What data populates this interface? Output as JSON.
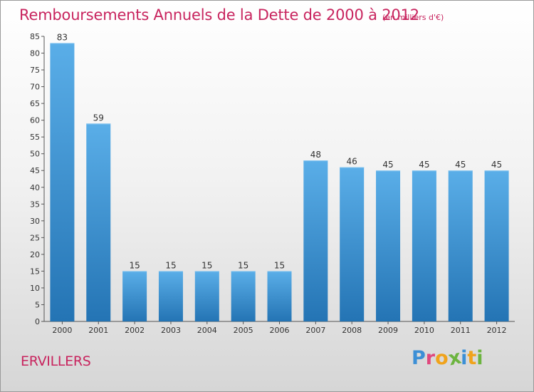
{
  "title": "Remboursements Annuels de la Dette de 2000 à 2012",
  "subtitle": "(en milliers d'€)",
  "town": "ERVILLERS",
  "brand": {
    "text": "Proxiti",
    "letters": [
      {
        "char": "P",
        "color": "#3c8fd6"
      },
      {
        "char": "r",
        "color": "#e0487e"
      },
      {
        "char": "o",
        "color": "#f0a31c"
      },
      {
        "char": "x",
        "color": "#6cb43f"
      },
      {
        "char": "i",
        "color": "#3c8fd6"
      },
      {
        "char": "t",
        "color": "#f0a31c"
      },
      {
        "char": "i",
        "color": "#6cb43f"
      }
    ]
  },
  "colors": {
    "accent": "#c8245e",
    "bar_top": "#5aaee8",
    "bar_bottom": "#2474b4",
    "axis_text": "#333333"
  },
  "chart_data": {
    "type": "bar",
    "categories": [
      "2000",
      "2001",
      "2002",
      "2003",
      "2004",
      "2005",
      "2006",
      "2007",
      "2008",
      "2009",
      "2010",
      "2011",
      "2012"
    ],
    "values": [
      83,
      59,
      15,
      15,
      15,
      15,
      15,
      48,
      46,
      45,
      45,
      45,
      45
    ],
    "data_labels": [
      "83",
      "59",
      "15",
      "15",
      "15",
      "15",
      "15",
      "48",
      "46",
      "45",
      "45",
      "45",
      "45"
    ],
    "ylim": [
      0,
      85
    ],
    "yticks": [
      0,
      5,
      10,
      15,
      20,
      25,
      30,
      35,
      40,
      45,
      50,
      55,
      60,
      65,
      70,
      75,
      80,
      85
    ],
    "grid": false
  }
}
